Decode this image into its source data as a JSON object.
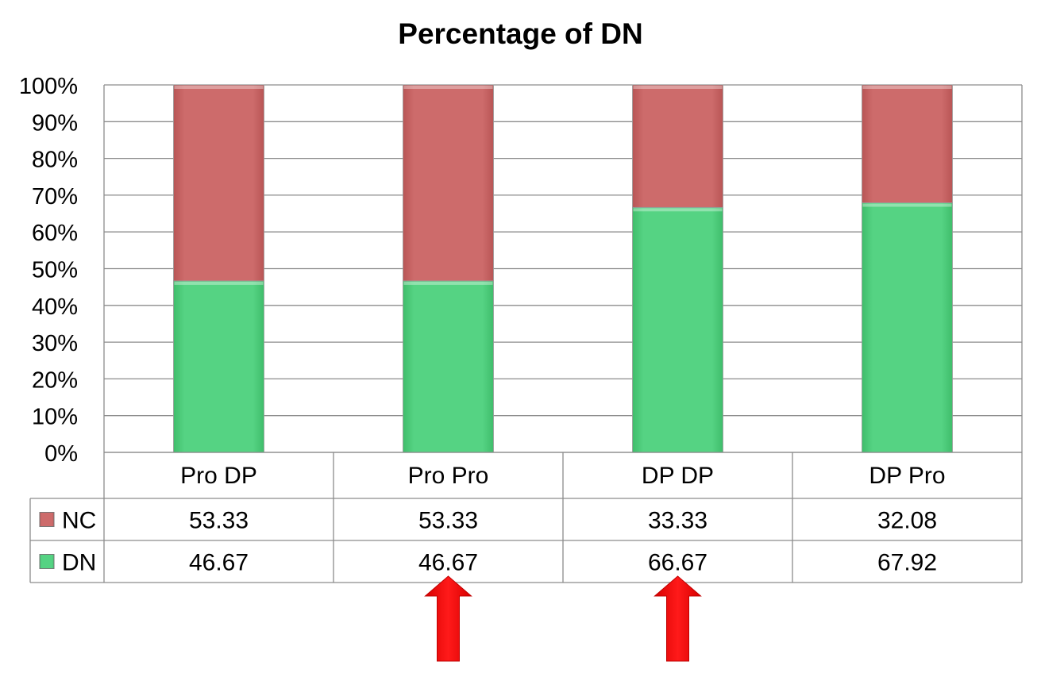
{
  "chart_data": {
    "type": "bar",
    "stacked": true,
    "normalized": true,
    "title": "Percentage of DN",
    "categories": [
      "Pro DP",
      "Pro Pro",
      "DP DP",
      "DP Pro"
    ],
    "series": [
      {
        "name": "DN",
        "values": [
          46.67,
          46.67,
          66.67,
          67.92
        ],
        "color": "#55d383"
      },
      {
        "name": "NC",
        "values": [
          53.33,
          53.33,
          33.33,
          32.08
        ],
        "color": "#cd6b6b"
      }
    ],
    "table_rows": [
      {
        "label": "NC",
        "cells": [
          "53.33",
          "53.33",
          "33.33",
          "32.08"
        ],
        "color": "#cd6b6b"
      },
      {
        "label": "DN",
        "cells": [
          "46.67",
          "46.67",
          "66.67",
          "67.92"
        ],
        "color": "#55d383"
      }
    ],
    "yticks": [
      "0%",
      "10%",
      "20%",
      "30%",
      "40%",
      "50%",
      "60%",
      "70%",
      "80%",
      "90%",
      "100%"
    ],
    "ylim": [
      0,
      100
    ],
    "grid": true,
    "legend": "data-table",
    "annotations": [
      {
        "type": "arrow",
        "category": "Pro Pro",
        "color": "#ff0000"
      },
      {
        "type": "arrow",
        "category": "DP DP",
        "color": "#ff0000"
      }
    ]
  }
}
